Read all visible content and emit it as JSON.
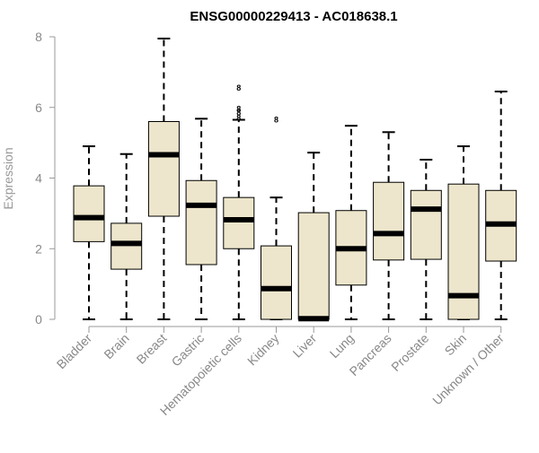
{
  "chart_data": {
    "type": "box",
    "title": "ENSG00000229413 - AC018638.1",
    "ylabel": "Expression",
    "xlabel": "",
    "ylim": [
      0,
      8
    ],
    "yticks": [
      "0",
      "2",
      "4",
      "6",
      "8"
    ],
    "grid": false,
    "box_fill": "#ede6cc",
    "box_stroke": "#000000",
    "categories": [
      "Bladder",
      "Brain",
      "Breast",
      "Gastric",
      "Hematopoietic cells",
      "Kidney",
      "Liver",
      "Lung",
      "Pancreas",
      "Prostate",
      "Skin",
      "Unknown / Other"
    ],
    "boxes": [
      {
        "label": "Bladder",
        "min": 0,
        "q1": 2.2,
        "median": 2.88,
        "q3": 3.78,
        "max": 4.9,
        "outliers": []
      },
      {
        "label": "Brain",
        "min": 0,
        "q1": 1.42,
        "median": 2.15,
        "q3": 2.72,
        "max": 4.68,
        "outliers": []
      },
      {
        "label": "Breast",
        "min": 0,
        "q1": 2.92,
        "median": 4.66,
        "q3": 5.6,
        "max": 7.95,
        "outliers": []
      },
      {
        "label": "Gastric",
        "min": 0,
        "q1": 1.55,
        "median": 3.23,
        "q3": 3.93,
        "max": 5.68,
        "outliers": []
      },
      {
        "label": "Hematopoietic cells",
        "min": 0,
        "q1": 2.0,
        "median": 2.82,
        "q3": 3.45,
        "max": 5.65,
        "outliers": [
          5.7,
          5.85,
          5.95,
          6.55
        ]
      },
      {
        "label": "Kidney",
        "min": 0,
        "q1": 0,
        "median": 0.87,
        "q3": 2.08,
        "max": 3.45,
        "outliers": [
          5.65
        ]
      },
      {
        "label": "Liver",
        "min": 0,
        "q1": 0,
        "median": 0.02,
        "q3": 3.02,
        "max": 4.72,
        "outliers": []
      },
      {
        "label": "Lung",
        "min": 0,
        "q1": 0.97,
        "median": 2.0,
        "q3": 3.08,
        "max": 5.48,
        "outliers": []
      },
      {
        "label": "Pancreas",
        "min": 0,
        "q1": 1.68,
        "median": 2.43,
        "q3": 3.88,
        "max": 5.3,
        "outliers": []
      },
      {
        "label": "Prostate",
        "min": 0,
        "q1": 1.7,
        "median": 3.12,
        "q3": 3.65,
        "max": 4.52,
        "outliers": []
      },
      {
        "label": "Skin",
        "min": 0,
        "q1": 0,
        "median": 0.67,
        "q3": 3.83,
        "max": 4.9,
        "outliers": []
      },
      {
        "label": "Unknown / Other",
        "min": 0,
        "q1": 1.65,
        "median": 2.7,
        "q3": 3.65,
        "max": 6.45,
        "outliers": []
      }
    ],
    "outlier_marker": "8"
  }
}
